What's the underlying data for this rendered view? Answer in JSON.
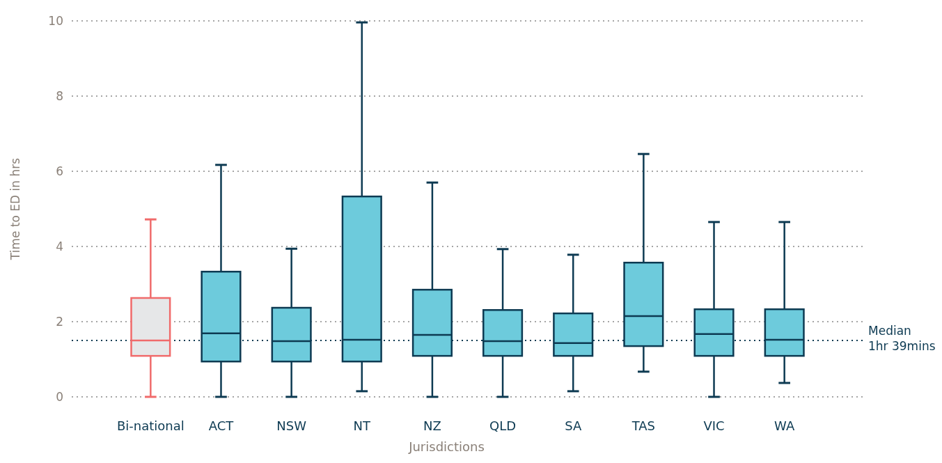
{
  "chart_data": {
    "type": "box",
    "xlabel": "Jurisdictions",
    "ylabel": "Time to ED in hrs",
    "categories": [
      "Bi-national",
      "ACT",
      "NSW",
      "NT",
      "NZ",
      "QLD",
      "SA",
      "TAS",
      "VIC",
      "WA"
    ],
    "colors": [
      "#e6e7e8",
      "#6dcbdc",
      "#6dcbdc",
      "#6dcbdc",
      "#6dcbdc",
      "#6dcbdc",
      "#6dcbdc",
      "#6dcbdc",
      "#6dcbdc",
      "#6dcbdc"
    ],
    "series": [
      {
        "color": "#f06b6b",
        "boxes": [
          {
            "low": 0,
            "q1": 1.09,
            "median": 1.5,
            "q3": 2.63,
            "high": 4.72
          },
          null,
          null,
          null,
          null,
          null,
          null,
          null,
          null,
          null
        ]
      },
      {
        "color": "#0d3a52",
        "boxes": [
          null,
          {
            "low": 0,
            "q1": 0.94,
            "median": 1.69,
            "q3": 3.33,
            "high": 6.17
          },
          {
            "low": 0,
            "q1": 0.94,
            "median": 1.48,
            "q3": 2.37,
            "high": 3.94
          },
          {
            "low": 0.15,
            "q1": 0.94,
            "median": 1.52,
            "q3": 5.33,
            "high": 9.96
          },
          {
            "low": 0,
            "q1": 1.09,
            "median": 1.65,
            "q3": 2.85,
            "high": 5.7
          },
          {
            "low": 0,
            "q1": 1.09,
            "median": 1.48,
            "q3": 2.31,
            "high": 3.93
          },
          {
            "low": 0.15,
            "q1": 1.09,
            "median": 1.43,
            "q3": 2.22,
            "high": 3.78
          },
          {
            "low": 0.67,
            "q1": 1.35,
            "median": 2.15,
            "q3": 3.57,
            "high": 6.46
          },
          {
            "low": 0,
            "q1": 1.09,
            "median": 1.67,
            "q3": 2.33,
            "high": 4.65
          },
          {
            "low": 0.37,
            "q1": 1.09,
            "median": 1.52,
            "q3": 2.33,
            "high": 4.65
          }
        ]
      }
    ],
    "ylim": [
      0,
      10
    ],
    "yticks": [
      0,
      2,
      4,
      6,
      8,
      10
    ],
    "grid": "y",
    "ref_lines": [
      {
        "axis": "y",
        "value": 1.5,
        "label": "Median\n1hr 39mins",
        "color": "#0d3a52",
        "line_style": "dotted"
      }
    ]
  }
}
